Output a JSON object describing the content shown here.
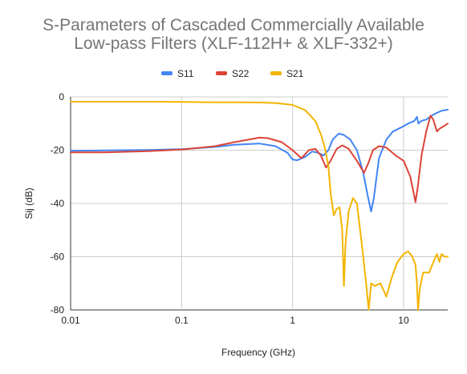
{
  "chart_data": {
    "type": "line",
    "title_lines": [
      "S-Parameters of Cascaded Commercially Available",
      "Low-pass Filters (XLF-112H+ & XLF-332+)"
    ],
    "xlabel": "Frequency (GHz)",
    "ylabel": "Sij (dB)",
    "x_scale": "log",
    "xlim": [
      0.01,
      25
    ],
    "ylim": [
      -80,
      0
    ],
    "x_ticks": [
      0.01,
      0.1,
      1,
      10
    ],
    "x_tick_labels": [
      "0.01",
      "0.1",
      "1",
      "10"
    ],
    "y_ticks": [
      0,
      -20,
      -40,
      -60,
      -80
    ],
    "y_tick_labels": [
      "0",
      "-20",
      "-40",
      "-60",
      "-80"
    ],
    "grid": true,
    "legend_position": "top",
    "series": [
      {
        "name": "S11",
        "color": "#4285f4",
        "points": [
          [
            0.01,
            -20.2
          ],
          [
            0.02,
            -20.1
          ],
          [
            0.05,
            -19.9
          ],
          [
            0.1,
            -19.6
          ],
          [
            0.2,
            -18.8
          ],
          [
            0.3,
            -18.0
          ],
          [
            0.5,
            -17.5
          ],
          [
            0.7,
            -18.5
          ],
          [
            0.9,
            -21
          ],
          [
            1.0,
            -23.5
          ],
          [
            1.1,
            -23.8
          ],
          [
            1.3,
            -22.5
          ],
          [
            1.5,
            -20.5
          ],
          [
            1.7,
            -21
          ],
          [
            1.9,
            -22
          ],
          [
            2.1,
            -20
          ],
          [
            2.3,
            -16
          ],
          [
            2.6,
            -13.8
          ],
          [
            2.9,
            -14.3
          ],
          [
            3.3,
            -16
          ],
          [
            3.8,
            -20
          ],
          [
            4.3,
            -28
          ],
          [
            4.8,
            -38
          ],
          [
            5.1,
            -43
          ],
          [
            5.4,
            -38
          ],
          [
            6.0,
            -23
          ],
          [
            7.0,
            -16
          ],
          [
            8.0,
            -13
          ],
          [
            9.5,
            -11.5
          ],
          [
            11,
            -10
          ],
          [
            12.5,
            -9
          ],
          [
            13.2,
            -7.5
          ],
          [
            13.6,
            -10
          ],
          [
            14.5,
            -9
          ],
          [
            16,
            -8.5
          ],
          [
            18,
            -7
          ],
          [
            20,
            -6
          ],
          [
            22,
            -5.2
          ],
          [
            25,
            -4.8
          ]
        ]
      },
      {
        "name": "S22",
        "color": "#db4437",
        "points": [
          [
            0.01,
            -20.8
          ],
          [
            0.02,
            -20.8
          ],
          [
            0.05,
            -20.4
          ],
          [
            0.1,
            -19.8
          ],
          [
            0.2,
            -18.5
          ],
          [
            0.3,
            -17
          ],
          [
            0.5,
            -15.3
          ],
          [
            0.6,
            -15.5
          ],
          [
            0.8,
            -17
          ],
          [
            1.0,
            -20
          ],
          [
            1.2,
            -23
          ],
          [
            1.4,
            -20
          ],
          [
            1.6,
            -19.5
          ],
          [
            1.8,
            -22
          ],
          [
            2.0,
            -26.5
          ],
          [
            2.2,
            -24
          ],
          [
            2.5,
            -19.5
          ],
          [
            2.8,
            -18.2
          ],
          [
            3.2,
            -19.5
          ],
          [
            3.8,
            -24
          ],
          [
            4.4,
            -28.5
          ],
          [
            4.8,
            -25
          ],
          [
            5.3,
            -20
          ],
          [
            6.0,
            -18.5
          ],
          [
            7.0,
            -19
          ],
          [
            8.5,
            -22
          ],
          [
            10,
            -24
          ],
          [
            11.5,
            -30
          ],
          [
            12.8,
            -39.5
          ],
          [
            13.5,
            -33
          ],
          [
            14.5,
            -22
          ],
          [
            16,
            -13
          ],
          [
            17.5,
            -7
          ],
          [
            18.5,
            -8.5
          ],
          [
            20,
            -13
          ],
          [
            21,
            -12
          ],
          [
            23,
            -11
          ],
          [
            25,
            -10
          ]
        ]
      },
      {
        "name": "S21",
        "color": "#f4b400",
        "points": [
          [
            0.01,
            -1.8
          ],
          [
            0.02,
            -1.8
          ],
          [
            0.05,
            -1.8
          ],
          [
            0.1,
            -1.9
          ],
          [
            0.2,
            -2
          ],
          [
            0.3,
            -2
          ],
          [
            0.5,
            -2.1
          ],
          [
            0.7,
            -2.3
          ],
          [
            1.0,
            -3
          ],
          [
            1.3,
            -5
          ],
          [
            1.6,
            -9
          ],
          [
            1.8,
            -14
          ],
          [
            1.95,
            -19
          ],
          [
            2.1,
            -26
          ],
          [
            2.2,
            -36
          ],
          [
            2.35,
            -44.5
          ],
          [
            2.5,
            -42
          ],
          [
            2.65,
            -41.5
          ],
          [
            2.8,
            -50
          ],
          [
            2.9,
            -71
          ],
          [
            3.0,
            -55
          ],
          [
            3.2,
            -43
          ],
          [
            3.5,
            -38
          ],
          [
            3.8,
            -40
          ],
          [
            4.2,
            -55
          ],
          [
            4.6,
            -70
          ],
          [
            4.85,
            -80
          ],
          [
            5.1,
            -70
          ],
          [
            5.5,
            -71
          ],
          [
            6.2,
            -70
          ],
          [
            7.0,
            -75
          ],
          [
            7.8,
            -68
          ],
          [
            8.8,
            -62
          ],
          [
            10,
            -59
          ],
          [
            11,
            -58
          ],
          [
            12,
            -60
          ],
          [
            12.8,
            -63
          ],
          [
            13.2,
            -70
          ],
          [
            13.5,
            -80
          ],
          [
            14.0,
            -72
          ],
          [
            15,
            -66
          ],
          [
            17,
            -66
          ],
          [
            19,
            -61
          ],
          [
            20,
            -59
          ],
          [
            21,
            -62
          ],
          [
            22,
            -59
          ],
          [
            23.5,
            -60
          ],
          [
            25,
            -60
          ]
        ]
      }
    ]
  }
}
